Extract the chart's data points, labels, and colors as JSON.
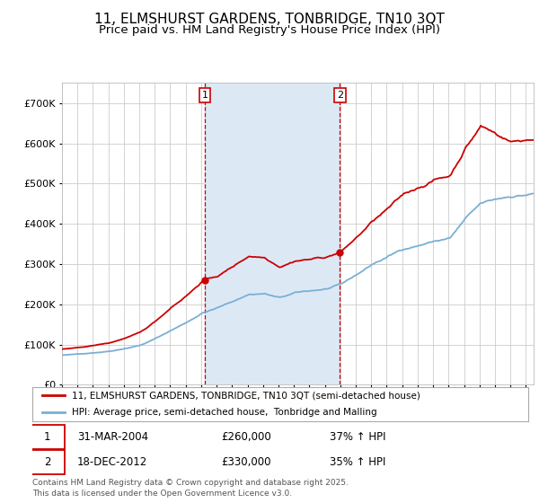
{
  "title": "11, ELMSHURST GARDENS, TONBRIDGE, TN10 3QT",
  "subtitle": "Price paid vs. HM Land Registry's House Price Index (HPI)",
  "legend_line1": "11, ELMSHURST GARDENS, TONBRIDGE, TN10 3QT (semi-detached house)",
  "legend_line2": "HPI: Average price, semi-detached house,  Tonbridge and Malling",
  "footer": "Contains HM Land Registry data © Crown copyright and database right 2025.\nThis data is licensed under the Open Government Licence v3.0.",
  "annotation1": {
    "label": "1",
    "date_str": "31-MAR-2004",
    "price_str": "£260,000",
    "hpi_str": "37% ↑ HPI",
    "x_year": 2004.25,
    "y_val": 260000
  },
  "annotation2": {
    "label": "2",
    "date_str": "18-DEC-2012",
    "price_str": "£330,000",
    "hpi_str": "35% ↑ HPI",
    "x_year": 2012.97,
    "y_val": 330000
  },
  "red_color": "#cc0000",
  "blue_color": "#7aafd4",
  "shade_color": "#dce9f5",
  "vline_color": "#cc0000",
  "background_color": "#ffffff",
  "grid_color": "#cccccc",
  "ylim": [
    0,
    750000
  ],
  "yticks": [
    0,
    100000,
    200000,
    300000,
    400000,
    500000,
    600000,
    700000
  ],
  "xlim_start": 1995.0,
  "xlim_end": 2025.5,
  "title_fontsize": 11,
  "subtitle_fontsize": 9.5
}
